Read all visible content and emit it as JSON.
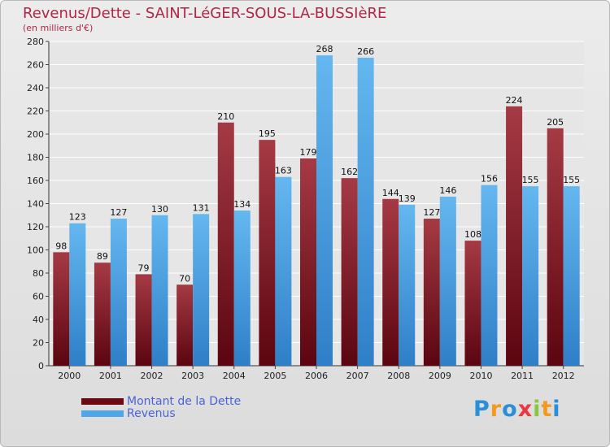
{
  "header": {
    "title": "Revenus/Dette - SAINT-LéGER-SOUS-LA-BUSSIèRE",
    "subtitle": "(en milliers d'€)"
  },
  "colors": {
    "title": "#b0264a",
    "debt_top": "#a53a44",
    "debt_bottom": "#5b0510",
    "revenue_top": "#64b7ef",
    "revenue_bottom": "#2f7fc8",
    "legend_text": "#4a63d6"
  },
  "legend": {
    "items": [
      {
        "label": "Montant de la Dette",
        "color": "#6b0a12"
      },
      {
        "label": "Revenus",
        "color": "#4fa6e8"
      }
    ]
  },
  "logo": {
    "letters": [
      {
        "char": "P",
        "color": "#2a8fd6"
      },
      {
        "char": "r",
        "color": "#f39a1e"
      },
      {
        "char": "o",
        "color": "#2a8fd6"
      },
      {
        "char": "x",
        "color": "#e9383f"
      },
      {
        "char": "i",
        "color": "#8cc63f"
      },
      {
        "char": "t",
        "color": "#f39a1e"
      },
      {
        "char": "i",
        "color": "#2a8fd6"
      }
    ]
  },
  "chart_data": {
    "type": "bar",
    "title": "Revenus/Dette - SAINT-LéGER-SOUS-LA-BUSSIèRE",
    "ylabel": "(en milliers d'€)",
    "categories": [
      "2000",
      "2001",
      "2002",
      "2003",
      "2004",
      "2005",
      "2006",
      "2007",
      "2008",
      "2009",
      "2010",
      "2011",
      "2012"
    ],
    "series": [
      {
        "name": "Montant de la Dette",
        "values": [
          98,
          89,
          79,
          70,
          210,
          195,
          179,
          162,
          144,
          127,
          108,
          224,
          205
        ]
      },
      {
        "name": "Revenus",
        "values": [
          123,
          127,
          130,
          131,
          134,
          163,
          268,
          266,
          139,
          146,
          156,
          155,
          155
        ]
      }
    ],
    "ylim": [
      0,
      280
    ],
    "yticks": [
      0,
      20,
      40,
      60,
      80,
      100,
      120,
      140,
      160,
      180,
      200,
      220,
      240,
      260,
      280
    ],
    "grid": true,
    "legend_position": "bottom-left"
  }
}
